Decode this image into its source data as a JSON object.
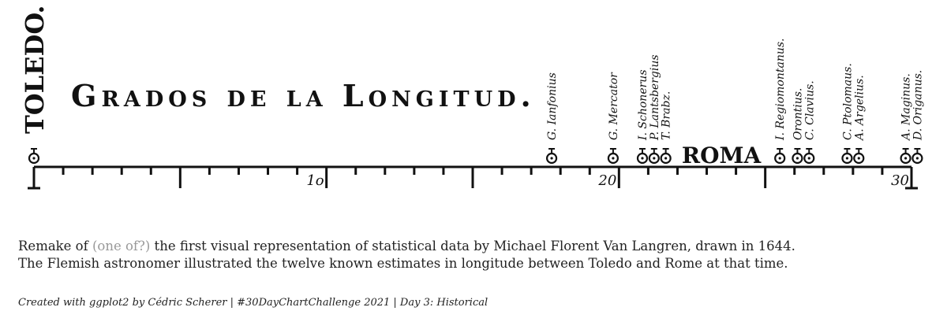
{
  "chart_data": {
    "type": "strip",
    "title": "Grados de la Longitud.",
    "origin_label": "TOLEDO.",
    "origin": 0,
    "reference": {
      "label": "ROMA",
      "x": 23.5
    },
    "points": [
      {
        "name": "G. Ianfonius",
        "x": 17.7
      },
      {
        "name": "G. Mercator",
        "x": 19.8
      },
      {
        "name": "I. Schonerus",
        "x": 20.8
      },
      {
        "name": "P. Lantsbergius",
        "x": 21.2
      },
      {
        "name": "T. Brabz.",
        "x": 21.6
      },
      {
        "name": "I. Regiomontanus.",
        "x": 25.5
      },
      {
        "name": "Orontius.",
        "x": 26.1
      },
      {
        "name": "C. Clavius.",
        "x": 26.5
      },
      {
        "name": "C. Ptolomaus.",
        "x": 27.8
      },
      {
        "name": "A. Argelius.",
        "x": 28.2
      },
      {
        "name": "A. Maginus.",
        "x": 29.8
      },
      {
        "name": "D. Origanus.",
        "x": 30.2
      }
    ],
    "xlim": [
      0,
      30
    ],
    "xticks": [
      {
        "value": 10,
        "label": "1o"
      },
      20,
      30
    ],
    "xmajor": [
      0,
      5,
      10,
      15,
      20,
      25,
      30
    ],
    "xminor": [
      1,
      2,
      3,
      4,
      6,
      7,
      8,
      9,
      11,
      12,
      13,
      14,
      16,
      17,
      18,
      19,
      21,
      22,
      23,
      24,
      26,
      27,
      28,
      29
    ],
    "color": "#111111",
    "caption": [
      "Remake of ",
      "(one of?)",
      " the first visual representation of statistical data by Michael Florent Van Langren, drawn in 1644.",
      "The Flemish astronomer illustrated the twelve known estimates in longitude between Toledo and Rome at that time."
    ],
    "credit": "Created with ggplot2 by Cédric Scherer | #30DayChartChallenge 2021 | Day 3: Historical"
  }
}
